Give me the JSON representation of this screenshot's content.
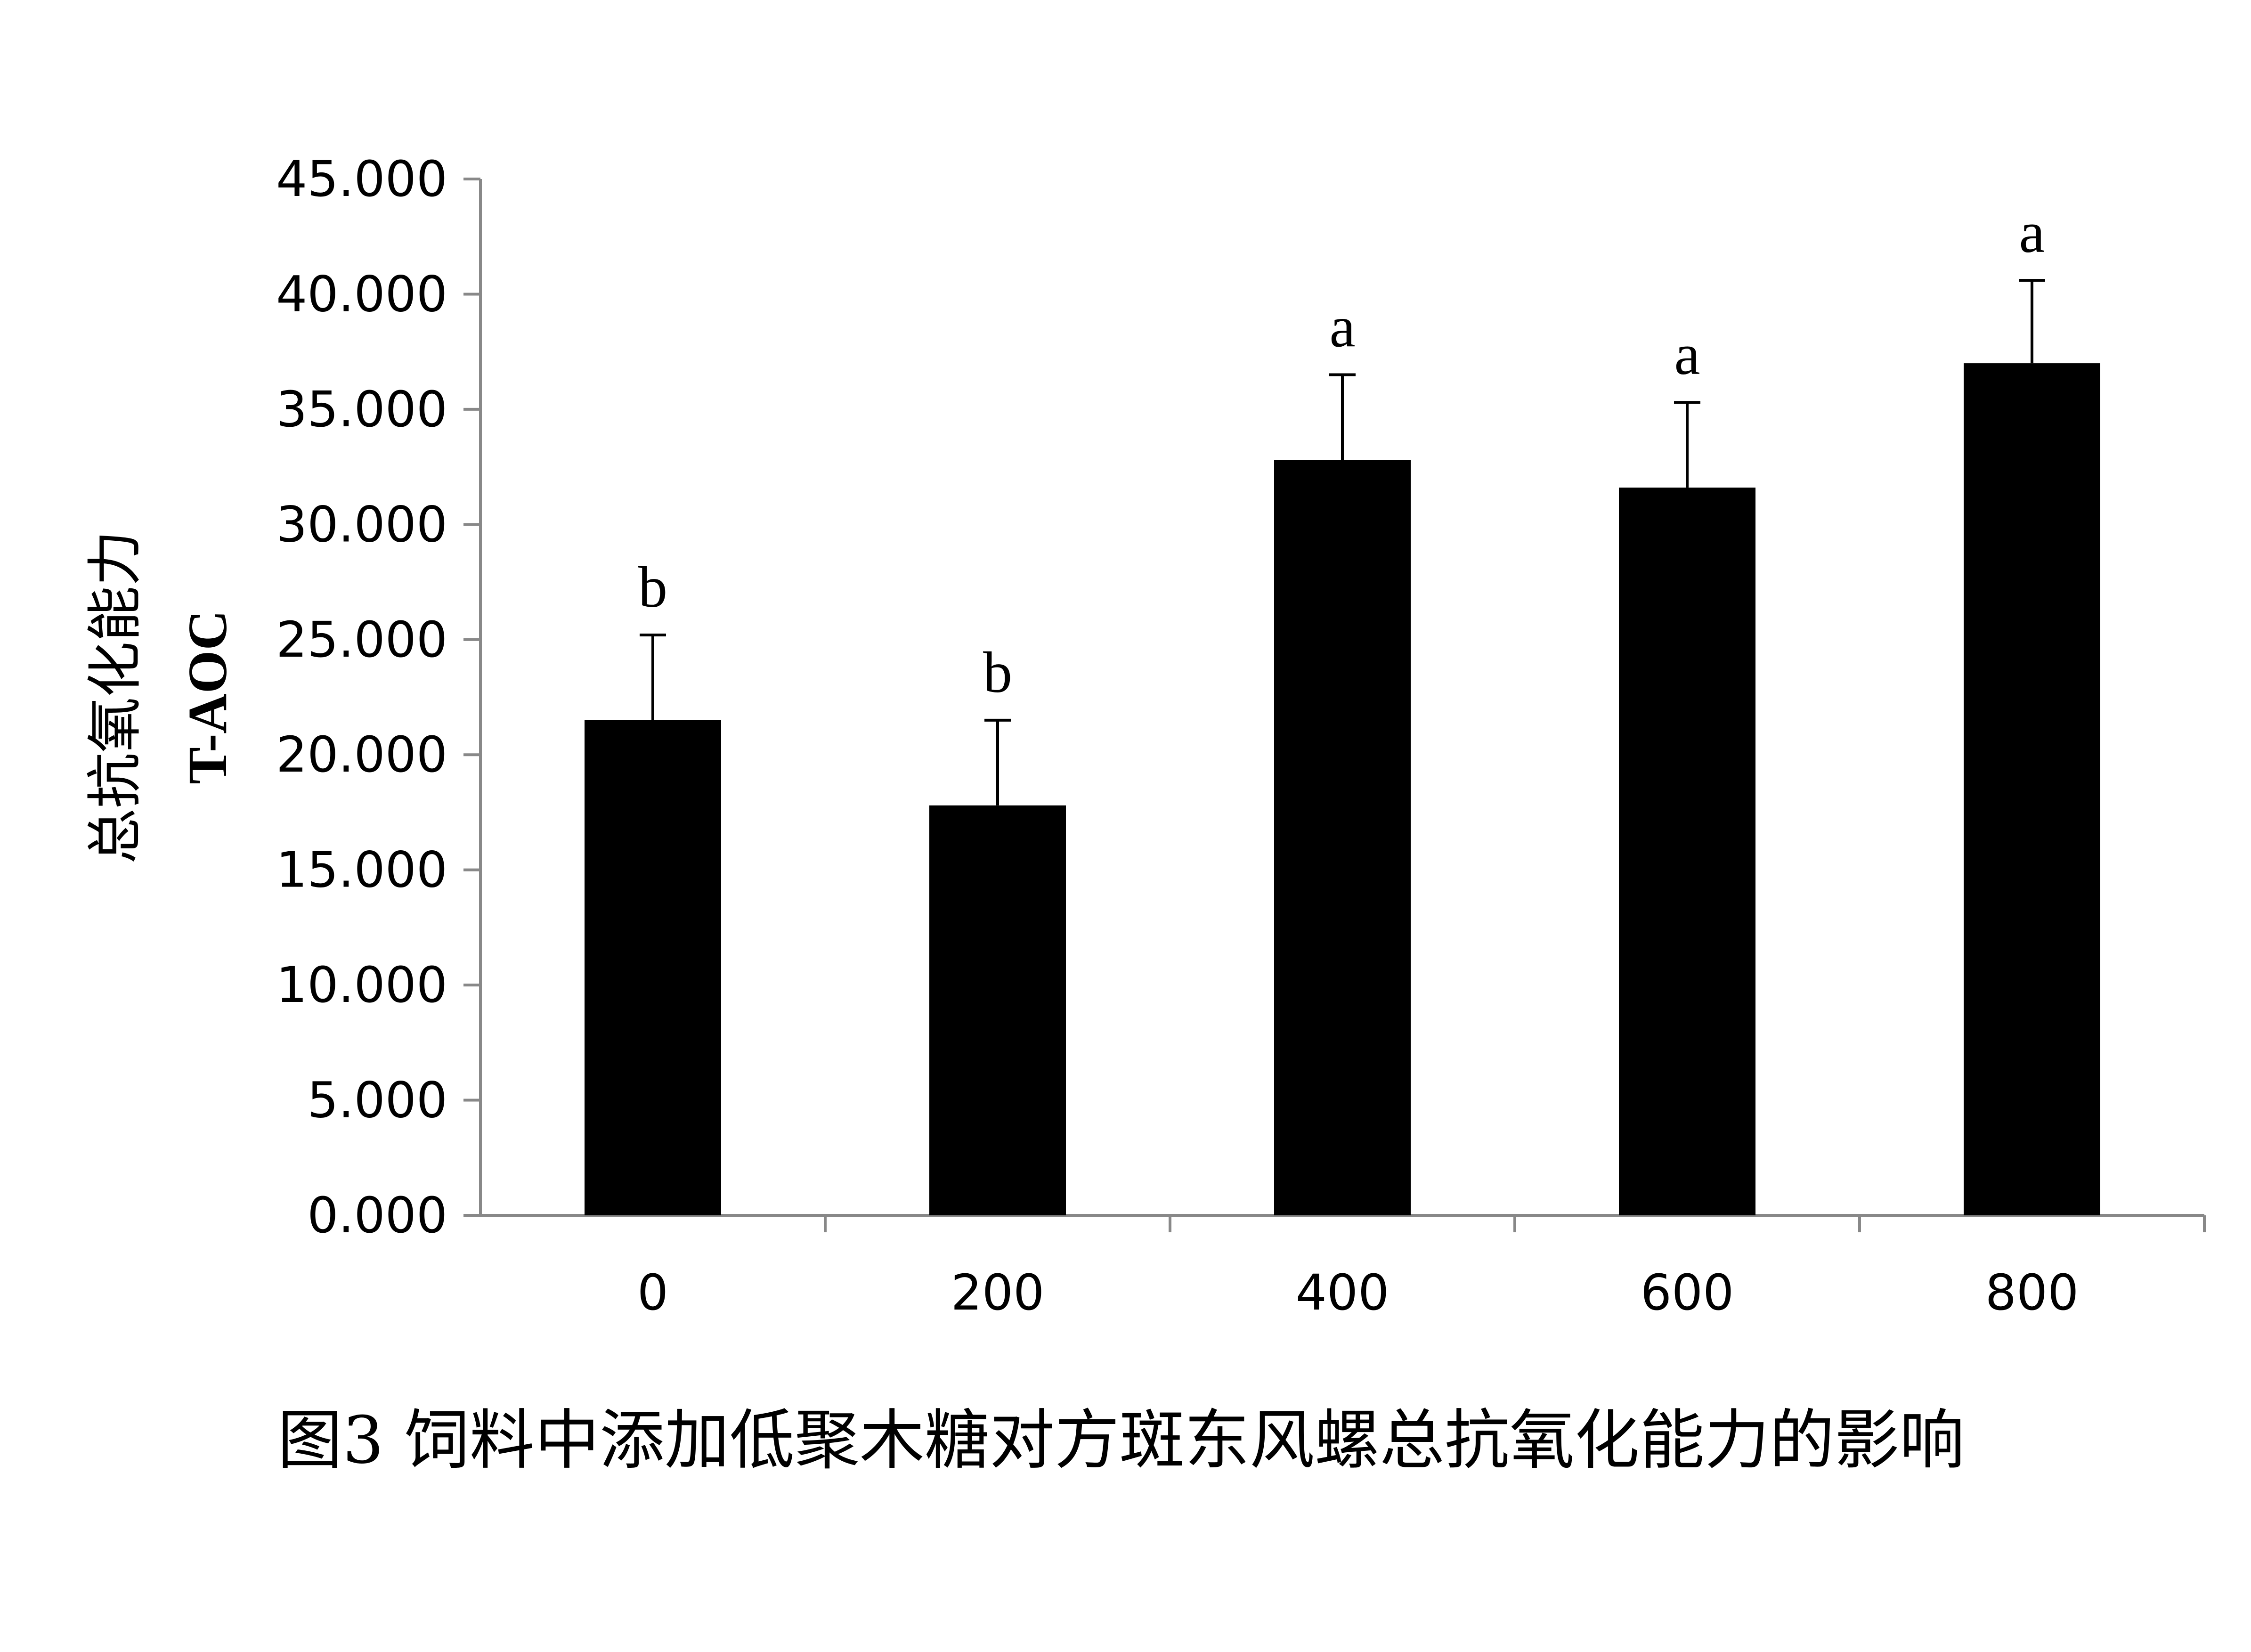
{
  "chart_data": {
    "type": "bar",
    "categories": [
      "0",
      "200",
      "400",
      "600",
      "800"
    ],
    "values": [
      21.5,
      17.8,
      32.8,
      31.6,
      37.0
    ],
    "error_upper": [
      25.2,
      21.5,
      36.5,
      35.3,
      40.6
    ],
    "significance": [
      "b",
      "b",
      "a",
      "a",
      "a"
    ],
    "ylabel": "总抗氧化能力",
    "ylabel_sub": "T-AOC",
    "xlabel": "",
    "ylim": [
      0,
      45
    ],
    "y_ticks": [
      "0.000",
      "5.000",
      "10.000",
      "15.000",
      "20.000",
      "25.000",
      "30.000",
      "35.000",
      "40.000",
      "45.000"
    ],
    "grid": false,
    "legend": "none",
    "bar_color": "#000000",
    "axis_color": "#888888"
  },
  "caption": "图3 饲料中添加低聚木糖对方斑东风螺总抗氧化能力的影响"
}
